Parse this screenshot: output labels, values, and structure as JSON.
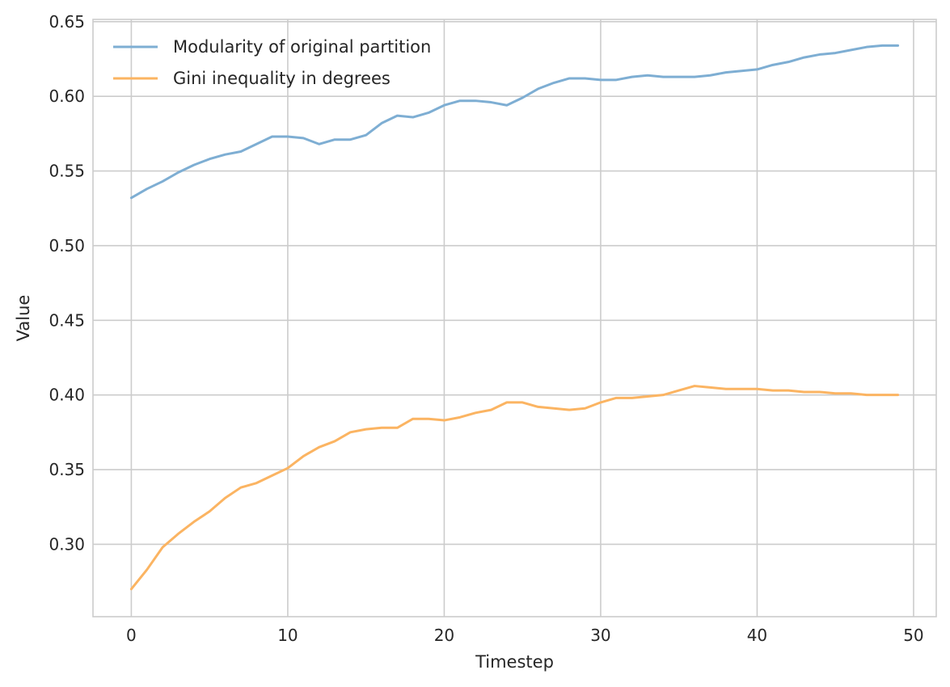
{
  "chart_data": {
    "type": "line",
    "title": "",
    "xlabel": "Timestep",
    "ylabel": "Value",
    "xlim": [
      -2.45,
      51.45
    ],
    "ylim": [
      0.2515,
      0.6515
    ],
    "xticks": [
      0,
      10,
      20,
      30,
      40,
      50
    ],
    "xtick_labels": [
      "0",
      "10",
      "20",
      "30",
      "40",
      "50"
    ],
    "yticks": [
      0.3,
      0.35,
      0.4,
      0.45,
      0.5,
      0.55,
      0.6,
      0.65
    ],
    "ytick_labels": [
      "0.30",
      "0.35",
      "0.40",
      "0.45",
      "0.50",
      "0.55",
      "0.60",
      "0.65"
    ],
    "grid": true,
    "legend_position": "top-left",
    "x": [
      0,
      1,
      2,
      3,
      4,
      5,
      6,
      7,
      8,
      9,
      10,
      11,
      12,
      13,
      14,
      15,
      16,
      17,
      18,
      19,
      20,
      21,
      22,
      23,
      24,
      25,
      26,
      27,
      28,
      29,
      30,
      31,
      32,
      33,
      34,
      35,
      36,
      37,
      38,
      39,
      40,
      41,
      42,
      43,
      44,
      45,
      46,
      47,
      48,
      49
    ],
    "series": [
      {
        "name": "Modularity of original partition",
        "color": "#7eaed3",
        "values": [
          0.532,
          0.538,
          0.543,
          0.549,
          0.554,
          0.558,
          0.561,
          0.563,
          0.568,
          0.573,
          0.573,
          0.572,
          0.568,
          0.571,
          0.571,
          0.574,
          0.582,
          0.587,
          0.586,
          0.589,
          0.594,
          0.597,
          0.597,
          0.596,
          0.594,
          0.599,
          0.605,
          0.609,
          0.612,
          0.612,
          0.611,
          0.611,
          0.613,
          0.614,
          0.613,
          0.613,
          0.613,
          0.614,
          0.616,
          0.617,
          0.618,
          0.621,
          0.623,
          0.626,
          0.628,
          0.629,
          0.631,
          0.633,
          0.634,
          0.634
        ]
      },
      {
        "name": "Gini inequality in degrees",
        "color": "#fbb462",
        "values": [
          0.27,
          0.283,
          0.298,
          0.307,
          0.315,
          0.322,
          0.331,
          0.338,
          0.341,
          0.346,
          0.351,
          0.359,
          0.365,
          0.369,
          0.375,
          0.377,
          0.378,
          0.378,
          0.384,
          0.384,
          0.383,
          0.385,
          0.388,
          0.39,
          0.395,
          0.395,
          0.392,
          0.391,
          0.39,
          0.391,
          0.395,
          0.398,
          0.398,
          0.399,
          0.4,
          0.403,
          0.406,
          0.405,
          0.404,
          0.404,
          0.404,
          0.403,
          0.403,
          0.402,
          0.402,
          0.401,
          0.401,
          0.4,
          0.4,
          0.4
        ]
      }
    ]
  }
}
